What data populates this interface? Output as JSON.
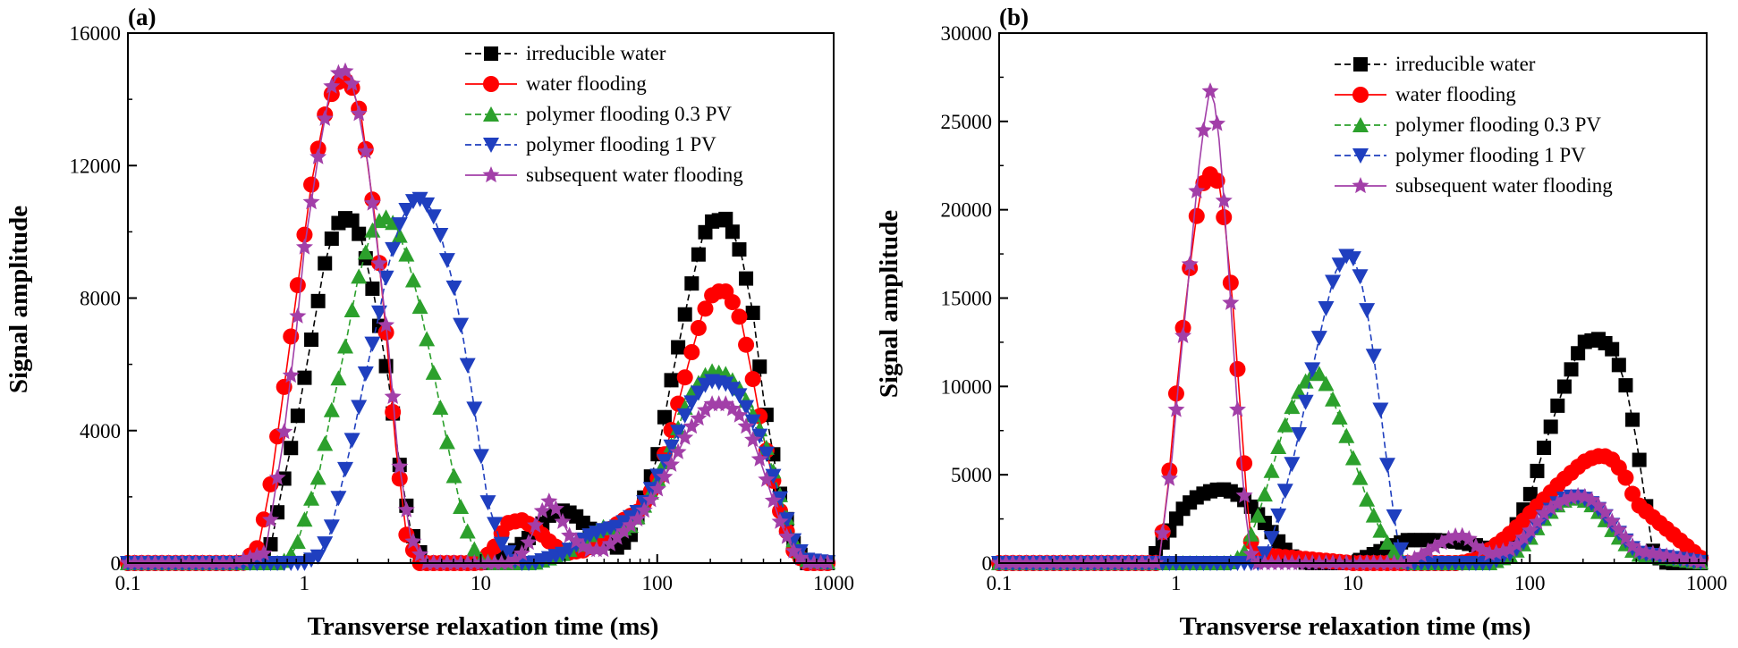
{
  "chart_data": [
    {
      "type": "line",
      "panel_label": "(a)",
      "xlabel": "Transverse relaxation time (ms)",
      "ylabel": "Signal amplitude",
      "xscale": "log",
      "xlim": [
        0.1,
        1000
      ],
      "ylim": [
        0,
        16000
      ],
      "xticks": [
        0.1,
        1,
        10,
        100,
        1000
      ],
      "xtick_labels": [
        "0.1",
        "1",
        "10",
        "100",
        "1000"
      ],
      "yticks": [
        0,
        4000,
        8000,
        12000,
        16000
      ],
      "ytick_labels": [
        "0",
        "4000",
        "8000",
        "12000",
        "16000"
      ],
      "legend_position": "top-right",
      "series": [
        {
          "name": "irreducible water",
          "color": "#000000",
          "marker": "square",
          "dashed": true,
          "x": [
            0.1,
            0.2,
            0.4,
            0.55,
            0.65,
            0.75,
            0.9,
            1.1,
            1.3,
            1.5,
            1.8,
            2.1,
            2.5,
            3.0,
            3.5,
            4.0,
            4.8,
            5.5,
            7,
            10,
            15,
            20,
            25,
            30,
            35,
            40,
            50,
            60,
            70,
            80,
            100,
            120,
            150,
            180,
            200,
            250,
            300,
            350,
            400,
            500,
            600,
            700,
            1000
          ],
          "y": [
            0,
            0,
            0,
            50,
            600,
            2300,
            4200,
            6800,
            9000,
            10200,
            10500,
            9800,
            8000,
            5500,
            2800,
            1000,
            0,
            0,
            0,
            0,
            300,
            900,
            1500,
            1600,
            1400,
            1100,
            700,
            450,
            800,
            1600,
            3200,
            5500,
            8000,
            9800,
            10300,
            10400,
            9300,
            7500,
            5000,
            2000,
            500,
            0,
            0
          ]
        },
        {
          "name": "water flooding",
          "color": "#ff0000",
          "marker": "circle",
          "dashed": false,
          "x": [
            0.1,
            0.3,
            0.45,
            0.55,
            0.65,
            0.8,
            0.95,
            1.1,
            1.3,
            1.5,
            1.8,
            2.1,
            2.5,
            2.9,
            3.3,
            3.8,
            4.5,
            6,
            10,
            12,
            14,
            17,
            20,
            25,
            30,
            40,
            50,
            60,
            80,
            100,
            120,
            150,
            180,
            210,
            250,
            300,
            350,
            400,
            500,
            600,
            700,
            1000
          ],
          "y": [
            0,
            0,
            0,
            500,
            2500,
            6000,
            9000,
            11500,
            13500,
            14500,
            14600,
            13500,
            10500,
            7000,
            3500,
            800,
            0,
            0,
            0,
            500,
            1200,
            1300,
            1100,
            600,
            300,
            400,
            900,
            1200,
            1600,
            2500,
            4000,
            6000,
            7500,
            8200,
            8200,
            7300,
            5500,
            3800,
            1500,
            300,
            0,
            0
          ]
        },
        {
          "name": "polymer flooding 0.3 PV",
          "color": "#2ca02c",
          "marker": "triangle-up",
          "dashed": true,
          "x": [
            0.1,
            0.5,
            0.7,
            0.8,
            0.9,
            1.0,
            1.2,
            1.4,
            1.7,
            2.0,
            2.4,
            2.8,
            3.3,
            3.8,
            4.5,
            5.2,
            6,
            7,
            8,
            9,
            10,
            12,
            20,
            30,
            40,
            50,
            60,
            70,
            80,
            100,
            130,
            150,
            180,
            200,
            250,
            300,
            400,
            500,
            600,
            700,
            1000
          ],
          "y": [
            0,
            0,
            0,
            100,
            500,
            1300,
            2600,
            4400,
            6500,
            8500,
            10000,
            10500,
            10200,
            9300,
            7800,
            6200,
            4500,
            2700,
            1300,
            500,
            100,
            0,
            0,
            300,
            800,
            1100,
            1000,
            1100,
            1500,
            2500,
            4000,
            5000,
            5600,
            5800,
            5700,
            5200,
            3800,
            2000,
            600,
            100,
            0
          ]
        },
        {
          "name": "polymer flooding 1 PV",
          "color": "#1f3fbf",
          "marker": "triangle-down",
          "dashed": true,
          "x": [
            0.1,
            0.8,
            1.0,
            1.2,
            1.4,
            1.6,
            1.9,
            2.2,
            2.6,
            3.0,
            3.5,
            4.0,
            4.6,
            5.2,
            6,
            7,
            8,
            9,
            10,
            11,
            13,
            16,
            20,
            30,
            40,
            50,
            60,
            80,
            100,
            130,
            150,
            180,
            200,
            250,
            300,
            400,
            500,
            600,
            700,
            1000
          ],
          "y": [
            0,
            0,
            0,
            200,
            900,
            2200,
            3900,
            5600,
            7300,
            9000,
            10300,
            10900,
            11000,
            10700,
            9800,
            8400,
            6700,
            5000,
            3300,
            1800,
            600,
            0,
            0,
            300,
            800,
            1000,
            1100,
            1600,
            2600,
            3900,
            4700,
            5300,
            5500,
            5400,
            5000,
            3600,
            1900,
            600,
            100,
            0
          ]
        },
        {
          "name": "subsequent water flooding",
          "color": "#a23fa8",
          "marker": "star",
          "dashed": false,
          "x": [
            0.1,
            0.4,
            0.6,
            0.75,
            0.9,
            1.0,
            1.2,
            1.4,
            1.6,
            1.8,
            2.0,
            2.3,
            2.6,
            3.0,
            3.4,
            4.0,
            4.8,
            10,
            15,
            18,
            21,
            24,
            27,
            32,
            40,
            50,
            60,
            80,
            100,
            130,
            150,
            180,
            200,
            250,
            300,
            350,
            400,
            500,
            600,
            700,
            1000
          ],
          "y": [
            0,
            0,
            300,
            3500,
            7000,
            9500,
            12300,
            14300,
            14900,
            14800,
            13800,
            12000,
            9500,
            6500,
            3200,
            800,
            0,
            0,
            0,
            400,
            1300,
            1900,
            1600,
            800,
            400,
            400,
            800,
            1400,
            2200,
            3300,
            4000,
            4500,
            4800,
            4800,
            4400,
            3700,
            2800,
            1200,
            300,
            0,
            0
          ]
        }
      ]
    },
    {
      "type": "line",
      "panel_label": "(b)",
      "xlabel": "Transverse relaxation time (ms)",
      "ylabel": "Signal amplitude",
      "xscale": "log",
      "xlim": [
        0.1,
        1000
      ],
      "ylim": [
        0,
        30000
      ],
      "xticks": [
        0.1,
        1,
        10,
        100,
        1000
      ],
      "xtick_labels": [
        "0.1",
        "1",
        "10",
        "100",
        "1000"
      ],
      "yticks": [
        0,
        5000,
        10000,
        15000,
        20000,
        25000,
        30000
      ],
      "ytick_labels": [
        "0",
        "5000",
        "10000",
        "15000",
        "20000",
        "25000",
        "30000"
      ],
      "legend_position": "top-right",
      "series": [
        {
          "name": "irreducible water",
          "color": "#000000",
          "marker": "square",
          "dashed": true,
          "x": [
            0.1,
            0.5,
            0.7,
            0.8,
            0.9,
            1.0,
            1.1,
            1.25,
            1.4,
            1.6,
            1.8,
            2.0,
            2.3,
            2.6,
            3.0,
            3.5,
            4.0,
            4.6,
            5.5,
            10,
            20,
            30,
            40,
            50,
            60,
            70,
            80,
            100,
            120,
            150,
            180,
            200,
            250,
            300,
            350,
            400,
            450,
            500,
            600,
            1000
          ],
          "y": [
            0,
            0,
            0,
            800,
            1700,
            2500,
            3100,
            3600,
            3900,
            4100,
            4200,
            4100,
            3800,
            3300,
            2600,
            1700,
            900,
            300,
            0,
            0,
            1300,
            1300,
            1200,
            1000,
            700,
            900,
            1700,
            3800,
            6500,
            9500,
            11500,
            12500,
            12700,
            12000,
            10000,
            7000,
            3500,
            500,
            0,
            0
          ]
        },
        {
          "name": "water flooding",
          "color": "#ff0000",
          "marker": "circle",
          "dashed": false,
          "x": [
            0.1,
            0.8,
            0.9,
            1.0,
            1.1,
            1.2,
            1.3,
            1.4,
            1.5,
            1.6,
            1.75,
            1.9,
            2.1,
            2.3,
            2.5,
            2.7,
            10,
            20,
            30,
            40,
            50,
            60,
            70,
            80,
            90,
            100,
            120,
            150,
            180,
            200,
            230,
            260,
            300,
            350,
            400,
            1000
          ],
          "y": [
            0,
            0,
            4300,
            9500,
            13500,
            16800,
            19500,
            21300,
            22000,
            22000,
            21500,
            19000,
            14500,
            9000,
            4000,
            500,
            0,
            0,
            0,
            0,
            200,
            800,
            1300,
            1800,
            2300,
            2800,
            3600,
            4600,
            5300,
            5700,
            6000,
            6100,
            5800,
            4800,
            3400,
            0
          ]
        },
        {
          "name": "polymer flooding 0.3 PV",
          "color": "#2ca02c",
          "marker": "triangle-up",
          "dashed": true,
          "x": [
            0.1,
            2.0,
            2.4,
            2.8,
            3.2,
            3.6,
            4.0,
            4.5,
            5.0,
            5.5,
            6.0,
            6.5,
            7.0,
            7.5,
            8.0,
            9.0,
            10,
            11,
            12,
            13.5,
            15,
            17,
            19,
            21,
            25,
            40,
            60,
            80,
            100,
            120,
            140,
            160,
            180,
            200,
            230,
            260,
            300,
            400,
            1000
          ],
          "y": [
            0,
            0,
            500,
            2200,
            4000,
            5800,
            7400,
            8800,
            9800,
            10400,
            10800,
            10700,
            10200,
            9600,
            8800,
            7500,
            6000,
            4800,
            3600,
            2400,
            1400,
            700,
            200,
            0,
            0,
            0,
            0,
            500,
            1400,
            2500,
            3200,
            3600,
            3700,
            3600,
            3200,
            2600,
            1700,
            500,
            0
          ]
        },
        {
          "name": "polymer flooding 1 PV",
          "color": "#1f3fbf",
          "marker": "triangle-down",
          "dashed": true,
          "x": [
            0.1,
            3.0,
            3.5,
            4.0,
            4.5,
            5.0,
            5.5,
            6.0,
            6.5,
            7.0,
            7.5,
            8.0,
            9.0,
            10,
            11,
            12,
            13,
            14,
            15,
            16,
            17,
            18,
            20,
            25,
            40,
            60,
            80,
            100,
            120,
            140,
            160,
            180,
            200,
            230,
            260,
            300,
            400,
            1000
          ],
          "y": [
            0,
            0,
            1500,
            3500,
            5500,
            7500,
            9500,
            11300,
            12900,
            14300,
            15500,
            16500,
            17400,
            17300,
            16200,
            14300,
            12000,
            9500,
            7000,
            4800,
            2800,
            1200,
            0,
            0,
            0,
            0,
            600,
            1500,
            2600,
            3300,
            3700,
            3800,
            3700,
            3300,
            2800,
            2000,
            600,
            0
          ]
        },
        {
          "name": "subsequent water flooding",
          "color": "#a23fa8",
          "marker": "star",
          "dashed": false,
          "x": [
            0.1,
            0.8,
            0.95,
            1.05,
            1.15,
            1.25,
            1.35,
            1.45,
            1.55,
            1.65,
            1.75,
            1.85,
            2.0,
            2.15,
            2.3,
            2.5,
            2.7,
            10,
            20,
            25,
            30,
            35,
            40,
            45,
            50,
            60,
            80,
            100,
            120,
            140,
            160,
            180,
            200,
            230,
            260,
            300,
            400,
            1000
          ],
          "y": [
            0,
            0,
            6000,
            11000,
            15000,
            19000,
            22500,
            25000,
            26800,
            26000,
            24000,
            21000,
            16000,
            11000,
            6500,
            2500,
            0,
            0,
            0,
            500,
            1000,
            1400,
            1600,
            1400,
            900,
            500,
            800,
            1800,
            2800,
            3300,
            3600,
            3800,
            3800,
            3500,
            3000,
            2200,
            700,
            0
          ]
        }
      ]
    }
  ]
}
